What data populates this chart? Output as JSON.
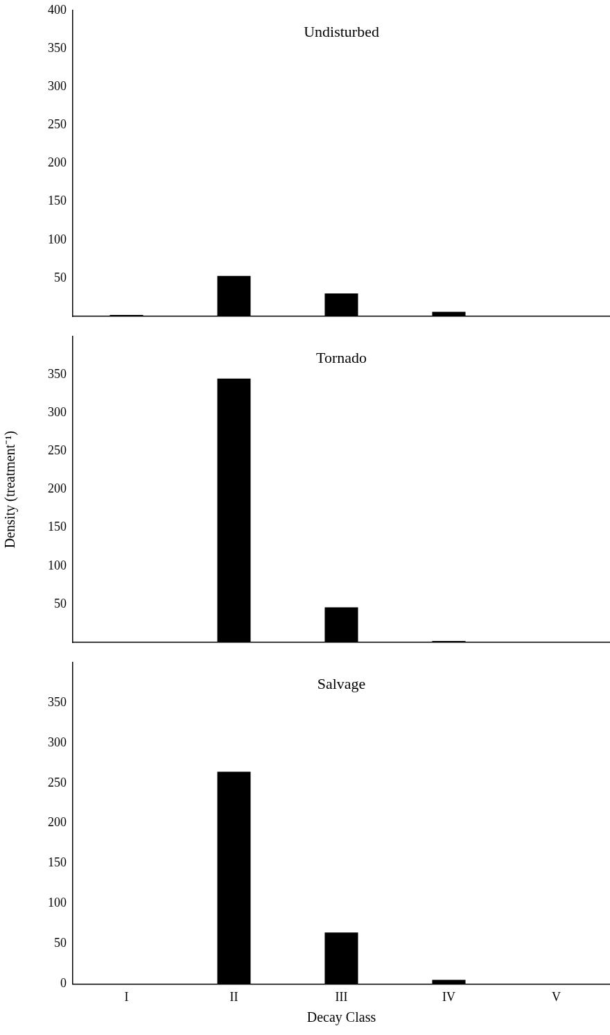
{
  "chart_data": [
    {
      "type": "bar",
      "title": "Undisturbed",
      "categories": [
        null,
        null,
        null,
        null,
        null
      ],
      "values": [
        2,
        53,
        30,
        6,
        0
      ],
      "color": "#000000",
      "ylim": [
        0,
        400
      ],
      "yticks": [
        50,
        100,
        150,
        200,
        250,
        300,
        350,
        400
      ],
      "tick_labels": "y",
      "grid": false,
      "legend": false
    },
    {
      "type": "bar",
      "title": "Tornado",
      "ylabel": "Density (treatment⁻¹)",
      "categories": [
        null,
        null,
        null,
        null,
        null
      ],
      "values": [
        0,
        345,
        46,
        2,
        0
      ],
      "color": "#000000",
      "ylim": [
        0,
        400
      ],
      "yticks": [
        50,
        100,
        150,
        200,
        250,
        300,
        350
      ],
      "tick_labels": "y",
      "grid": false,
      "legend": false
    },
    {
      "type": "bar",
      "title": "Salvage",
      "xlabel": "Decay Class",
      "categories": [
        "I",
        "II",
        "III",
        "IV",
        "V"
      ],
      "values": [
        0,
        264,
        64,
        5,
        0
      ],
      "color": "#000000",
      "ylim": [
        0,
        400
      ],
      "yticks": [
        0,
        50,
        100,
        150,
        200,
        250,
        300,
        350
      ],
      "grid": false,
      "legend": false
    }
  ]
}
